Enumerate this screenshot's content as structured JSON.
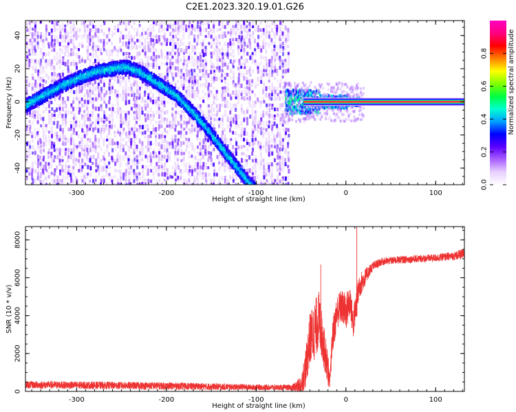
{
  "title": "C2E1.2023.320.19.01.G26",
  "chart_data": [
    {
      "type": "heatmap",
      "xlabel": "Height of straight line (km)",
      "ylabel": "Frequency (Hz)",
      "xlim": [
        -357,
        132
      ],
      "ylim": [
        -50,
        49
      ],
      "x_ticks": [
        -300,
        -200,
        -100,
        0,
        100
      ],
      "y_ticks": [
        -40,
        -20,
        0,
        20,
        40
      ],
      "colorbar": {
        "label": "Normalized spectral amplitude",
        "range": [
          0,
          1
        ],
        "ticks": [
          0.0,
          0.2,
          0.4,
          0.6,
          0.8
        ],
        "colors": [
          "#ffffff",
          "#e8d0ff",
          "#a860ff",
          "#5a00ff",
          "#0000ff",
          "#00a0ff",
          "#00ffd0",
          "#00ff40",
          "#80ff00",
          "#ffff00",
          "#ff8000",
          "#ff0000",
          "#ff0080",
          "#ff00c0"
        ]
      },
      "ridge": {
        "x": [
          -357,
          -340,
          -320,
          -300,
          -280,
          -260,
          -245,
          -230,
          -210,
          -190,
          -170,
          -150,
          -130,
          -110,
          -90
        ],
        "y": [
          -2,
          3,
          9,
          14,
          18,
          20,
          21,
          18,
          11,
          4,
          -7,
          -20,
          -34,
          -48,
          -60
        ]
      },
      "carrier": {
        "x_start": -70,
        "x_end": 132,
        "y": 0
      },
      "noise_cutoff_x": -65,
      "grid": false
    },
    {
      "type": "line",
      "xlabel": "Height of straight line (km)",
      "ylabel": "SNR (10 * v/v)",
      "xlim": [
        -357,
        132
      ],
      "ylim": [
        0,
        8700
      ],
      "x_ticks": [
        -300,
        -200,
        -100,
        0,
        100
      ],
      "y_ticks": [
        0,
        2000,
        4000,
        6000,
        8000
      ],
      "color": "#ee3333",
      "series": [
        {
          "x": [
            -357,
            -300,
            -200,
            -150,
            -100,
            -60,
            -50,
            -45,
            -40,
            -35,
            -30,
            -25,
            -20,
            -18,
            -15,
            -10,
            -5,
            0,
            5,
            8,
            12,
            15,
            20,
            25,
            30,
            40,
            60,
            80,
            100,
            120,
            132
          ],
          "y": [
            350,
            330,
            290,
            250,
            220,
            200,
            300,
            1200,
            2800,
            3200,
            3800,
            2500,
            1200,
            400,
            2800,
            4200,
            4500,
            4200,
            4800,
            3500,
            4700,
            5600,
            5900,
            6300,
            6600,
            6850,
            6950,
            7000,
            7050,
            7150,
            7250
          ],
          "noise": [
            200,
            200,
            200,
            180,
            150,
            150,
            500,
            1000,
            1400,
            1600,
            1500,
            1200,
            900,
            300,
            900,
            900,
            900,
            1000,
            900,
            800,
            900,
            700,
            500,
            350,
            250,
            200,
            200,
            200,
            200,
            220,
            300
          ]
        }
      ],
      "annotations": [
        {
          "x": 12,
          "y": 8700,
          "note": "spike peak"
        },
        {
          "x": -28,
          "y": 6700,
          "note": "spike"
        }
      ],
      "grid": false
    }
  ]
}
